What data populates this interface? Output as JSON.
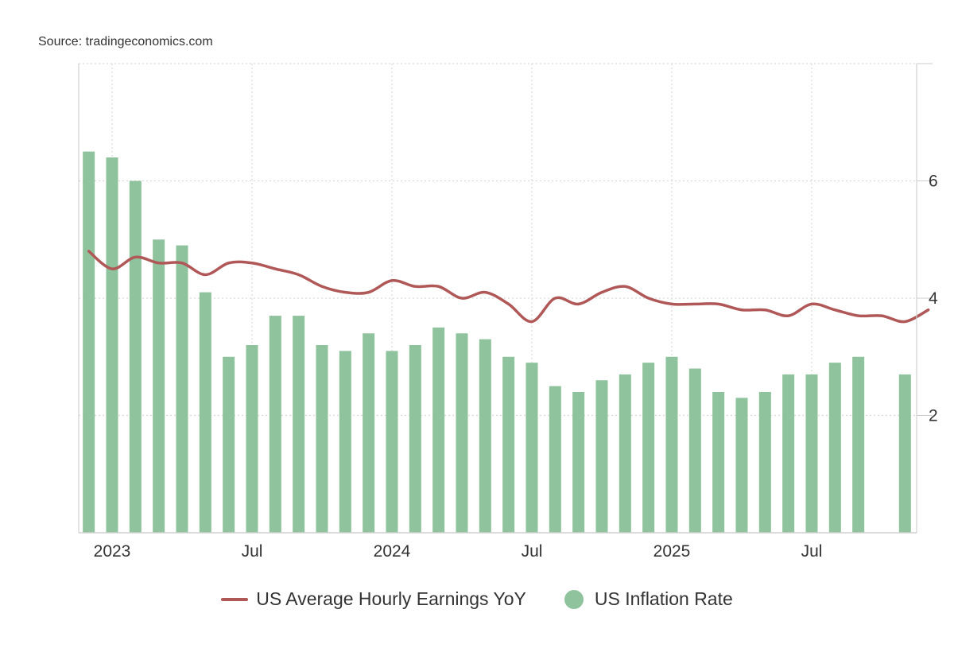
{
  "source": "Source: tradingeconomics.com",
  "chart_data": {
    "type": "bar+line",
    "title": "",
    "xlabel": "",
    "ylabel": "",
    "ylim": [
      0,
      8
    ],
    "y_axis_side": "right",
    "yticks": [
      2,
      4,
      6
    ],
    "grid": true,
    "legend_position": "bottom-center",
    "x_start": "2023-01",
    "x_end": "2025-10",
    "x_tick_labels": [
      {
        "date": "2023-01",
        "label": "2023"
      },
      {
        "date": "2023-07",
        "label": "Jul"
      },
      {
        "date": "2024-01",
        "label": "2024"
      },
      {
        "date": "2024-07",
        "label": "Jul"
      },
      {
        "date": "2025-01",
        "label": "2025"
      },
      {
        "date": "2025-07",
        "label": "Jul"
      }
    ],
    "series": [
      {
        "name": "US Inflation Rate",
        "type": "bar",
        "color": "#8fc39d",
        "points": [
          [
            "2022-12",
            6.5
          ],
          [
            "2023-01",
            6.4
          ],
          [
            "2023-02",
            6.0
          ],
          [
            "2023-03",
            5.0
          ],
          [
            "2023-04",
            4.9
          ],
          [
            "2023-05",
            4.1
          ],
          [
            "2023-06",
            3.0
          ],
          [
            "2023-07",
            3.2
          ],
          [
            "2023-08",
            3.7
          ],
          [
            "2023-09",
            3.7
          ],
          [
            "2023-10",
            3.2
          ],
          [
            "2023-11",
            3.1
          ],
          [
            "2023-12",
            3.4
          ],
          [
            "2024-01",
            3.1
          ],
          [
            "2024-02",
            3.2
          ],
          [
            "2024-03",
            3.5
          ],
          [
            "2024-04",
            3.4
          ],
          [
            "2024-05",
            3.3
          ],
          [
            "2024-06",
            3.0
          ],
          [
            "2024-07",
            2.9
          ],
          [
            "2024-08",
            2.5
          ],
          [
            "2024-09",
            2.4
          ],
          [
            "2024-10",
            2.6
          ],
          [
            "2024-11",
            2.7
          ],
          [
            "2024-12",
            2.9
          ],
          [
            "2025-01",
            3.0
          ],
          [
            "2025-02",
            2.8
          ],
          [
            "2025-03",
            2.4
          ],
          [
            "2025-04",
            2.3
          ],
          [
            "2025-05",
            2.4
          ],
          [
            "2025-06",
            2.7
          ],
          [
            "2025-07",
            2.7
          ],
          [
            "2025-08",
            2.9
          ],
          [
            "2025-09",
            3.0
          ],
          [
            "2025-11",
            2.7
          ]
        ]
      },
      {
        "name": "US Average Hourly Earnings YoY",
        "type": "line",
        "color": "#b05858",
        "points": [
          [
            "2022-12",
            4.8
          ],
          [
            "2023-01",
            4.5
          ],
          [
            "2023-02",
            4.7
          ],
          [
            "2023-03",
            4.6
          ],
          [
            "2023-04",
            4.6
          ],
          [
            "2023-05",
            4.4
          ],
          [
            "2023-06",
            4.6
          ],
          [
            "2023-07",
            4.6
          ],
          [
            "2023-08",
            4.5
          ],
          [
            "2023-09",
            4.4
          ],
          [
            "2023-10",
            4.2
          ],
          [
            "2023-11",
            4.1
          ],
          [
            "2023-12",
            4.1
          ],
          [
            "2024-01",
            4.3
          ],
          [
            "2024-02",
            4.2
          ],
          [
            "2024-03",
            4.2
          ],
          [
            "2024-04",
            4.0
          ],
          [
            "2024-05",
            4.1
          ],
          [
            "2024-06",
            3.9
          ],
          [
            "2024-07",
            3.6
          ],
          [
            "2024-08",
            4.0
          ],
          [
            "2024-09",
            3.9
          ],
          [
            "2024-10",
            4.1
          ],
          [
            "2024-11",
            4.2
          ],
          [
            "2024-12",
            4.0
          ],
          [
            "2025-01",
            3.9
          ],
          [
            "2025-02",
            3.9
          ],
          [
            "2025-03",
            3.9
          ],
          [
            "2025-04",
            3.8
          ],
          [
            "2025-05",
            3.8
          ],
          [
            "2025-06",
            3.7
          ],
          [
            "2025-07",
            3.9
          ],
          [
            "2025-08",
            3.8
          ],
          [
            "2025-09",
            3.7
          ],
          [
            "2025-10",
            3.7
          ],
          [
            "2025-11",
            3.6
          ],
          [
            "2025-12",
            3.8
          ]
        ]
      }
    ]
  },
  "legend": {
    "earnings_label": "US Average Hourly Earnings YoY",
    "inflation_label": "US Inflation Rate"
  }
}
